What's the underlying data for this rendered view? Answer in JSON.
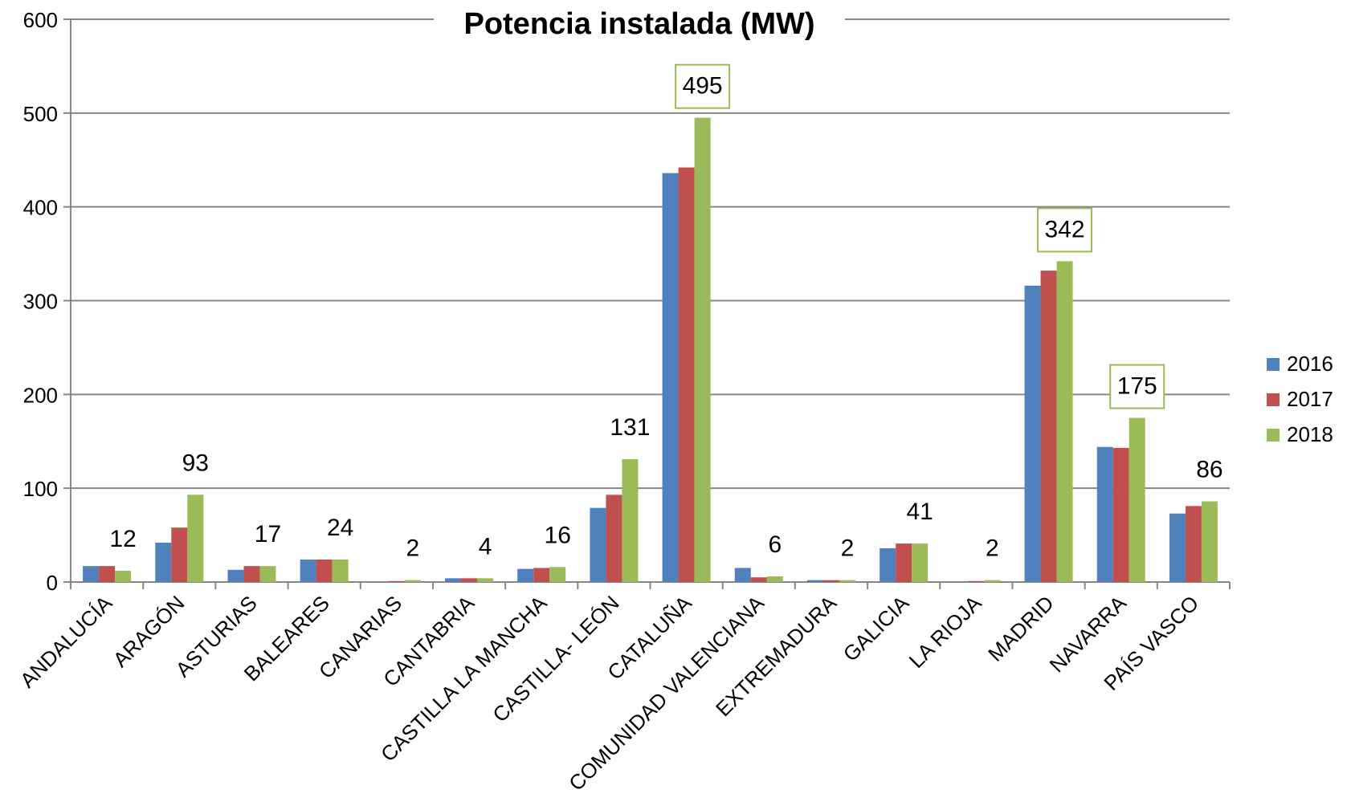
{
  "chart_data": {
    "type": "bar",
    "title": "Potencia instalada (MW)",
    "xlabel": "",
    "ylabel": "",
    "ylim": [
      0,
      600
    ],
    "yticks": [
      0,
      100,
      200,
      300,
      400,
      500,
      600
    ],
    "grid": true,
    "legend_position": "right",
    "categories": [
      "ANDALUCÍA",
      "ARAGÓN",
      "ASTURIAS",
      "BALEARES",
      "CANARIAS",
      "CANTABRIA",
      "CASTILLA LA MANCHA",
      "CASTILLA- LEÓN",
      "CATALUÑA",
      "COMUNIDAD VALENCIANA",
      "EXTREMADURA",
      "GALICIA",
      "LA RIOJA",
      "MADRID",
      "NAVARRA",
      "PAÍS VASCO"
    ],
    "series": [
      {
        "name": "2016",
        "color": "#4F81BD",
        "values": [
          17,
          42,
          13,
          24,
          0,
          4,
          14,
          79,
          436,
          15,
          2,
          36,
          0,
          316,
          144,
          73
        ]
      },
      {
        "name": "2017",
        "color": "#C0504D",
        "values": [
          17,
          58,
          17,
          24,
          1,
          4,
          15,
          93,
          442,
          5,
          2,
          41,
          1,
          332,
          143,
          81
        ]
      },
      {
        "name": "2018",
        "color": "#9BBB59",
        "values": [
          12,
          93,
          17,
          24,
          2,
          4,
          16,
          131,
          495,
          6,
          2,
          41,
          2,
          342,
          175,
          86
        ]
      }
    ],
    "data_labels": [
      {
        "category_index": 0,
        "text": "12",
        "boxed": false
      },
      {
        "category_index": 1,
        "text": "93",
        "boxed": false
      },
      {
        "category_index": 2,
        "text": "17",
        "boxed": false
      },
      {
        "category_index": 3,
        "text": "24",
        "boxed": false
      },
      {
        "category_index": 4,
        "text": "2",
        "boxed": false
      },
      {
        "category_index": 5,
        "text": "4",
        "boxed": false
      },
      {
        "category_index": 6,
        "text": "16",
        "boxed": false
      },
      {
        "category_index": 7,
        "text": "131",
        "boxed": false
      },
      {
        "category_index": 8,
        "text": "495",
        "boxed": true
      },
      {
        "category_index": 9,
        "text": "6",
        "boxed": false
      },
      {
        "category_index": 10,
        "text": "2",
        "boxed": false
      },
      {
        "category_index": 11,
        "text": "41",
        "boxed": false
      },
      {
        "category_index": 12,
        "text": "2",
        "boxed": false
      },
      {
        "category_index": 13,
        "text": "342",
        "boxed": true
      },
      {
        "category_index": 14,
        "text": "175",
        "boxed": true
      },
      {
        "category_index": 15,
        "text": "86",
        "boxed": false
      }
    ],
    "colors": {
      "grid": "#868686",
      "axis": "#868686",
      "label_box": "#9BBB59",
      "text": "#000000"
    }
  }
}
